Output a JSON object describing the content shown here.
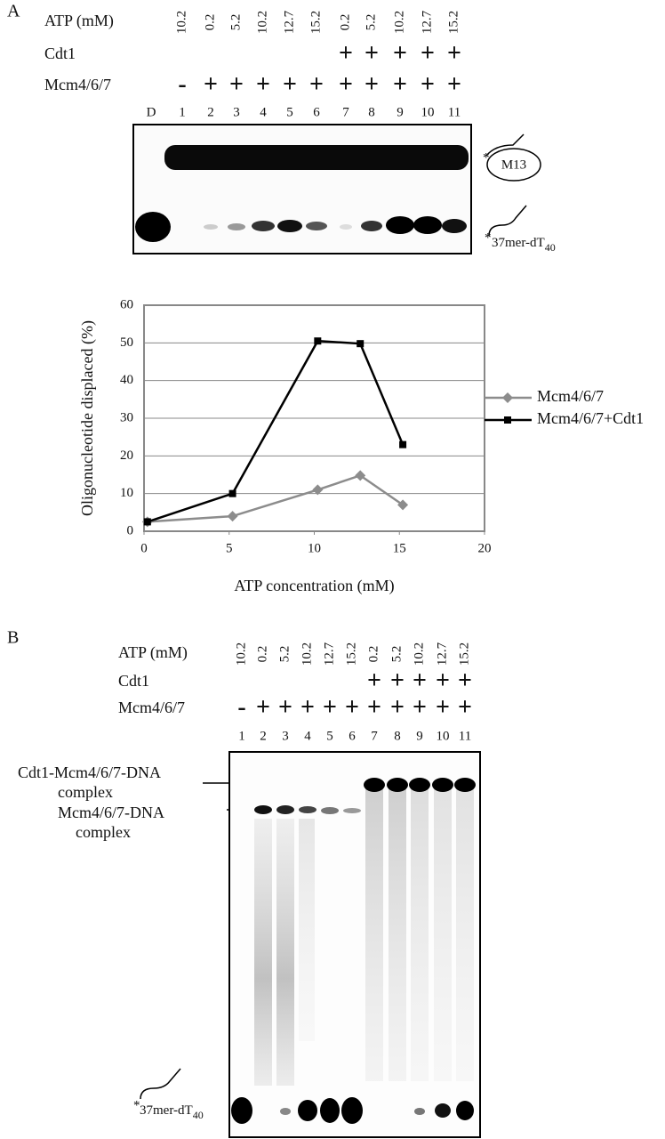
{
  "panel_a": {
    "label": "A",
    "rows": {
      "atp": "ATP (mM)",
      "cdt1": "Cdt1",
      "mcm": "Mcm4/6/7"
    },
    "atp": [
      10.2,
      0.2,
      5.2,
      10.2,
      12.7,
      15.2,
      0.2,
      5.2,
      10.2,
      12.7,
      15.2
    ],
    "cdt1": [
      null,
      null,
      null,
      null,
      null,
      null,
      "+",
      "+",
      "+",
      "+",
      "+"
    ],
    "mcm": [
      "-",
      "+",
      "+",
      "+",
      "+",
      "+",
      "+",
      "+",
      "+",
      "+",
      "+"
    ],
    "lanes": [
      1,
      2,
      3,
      4,
      5,
      6,
      7,
      8,
      9,
      10,
      11
    ],
    "marker_lane": "D",
    "gel_labels": {
      "m13": "M13",
      "strand_mark": "*",
      "oligo": {
        "text": "37mer-dT",
        "sub": "40"
      }
    }
  },
  "chart_data": {
    "type": "line",
    "y_label": "Oligonucleotide displaced (%)",
    "x_label": "ATP concentration (mM)",
    "xlim": [
      0,
      20
    ],
    "xticks": [
      0,
      5,
      10,
      15,
      20
    ],
    "ylim": [
      0,
      60
    ],
    "yticks": [
      0,
      10,
      20,
      30,
      40,
      50,
      60
    ],
    "grid": true,
    "legend": "right",
    "series": [
      {
        "name": "Mcm4/6/7",
        "color": "#8c8c8c",
        "marker": "diamond",
        "x": [
          0.2,
          5.2,
          10.2,
          12.7,
          15.2
        ],
        "values": [
          2.5,
          4,
          11,
          14.8,
          7
        ]
      },
      {
        "name": "Mcm4/6/7+Cdt1",
        "color": "#000000",
        "marker": "square",
        "x": [
          0.2,
          5.2,
          10.2,
          12.7,
          15.2
        ],
        "values": [
          2.5,
          10,
          50.5,
          49.8,
          23
        ]
      }
    ]
  },
  "panel_b": {
    "label": "B",
    "rows": {
      "atp": "ATP (mM)",
      "cdt1": "Cdt1",
      "mcm": "Mcm4/6/7"
    },
    "atp": [
      10.2,
      0.2,
      5.2,
      10.2,
      12.7,
      15.2,
      0.2,
      5.2,
      10.2,
      12.7,
      15.2
    ],
    "cdt1": [
      null,
      null,
      null,
      null,
      null,
      null,
      "+",
      "+",
      "+",
      "+",
      "+"
    ],
    "mcm": [
      "-",
      "+",
      "+",
      "+",
      "+",
      "+",
      "+",
      "+",
      "+",
      "+",
      "+"
    ],
    "lanes": [
      1,
      2,
      3,
      4,
      5,
      6,
      7,
      8,
      9,
      10,
      11
    ],
    "complex_labels": [
      [
        "Cdt1-Mcm4/6/7-DNA",
        "complex"
      ],
      [
        "Mcm4/6/7-DNA",
        "complex"
      ]
    ],
    "gel_labels": {
      "strand_mark": "*",
      "oligo": {
        "text": "37mer-dT",
        "sub": "40"
      }
    }
  }
}
